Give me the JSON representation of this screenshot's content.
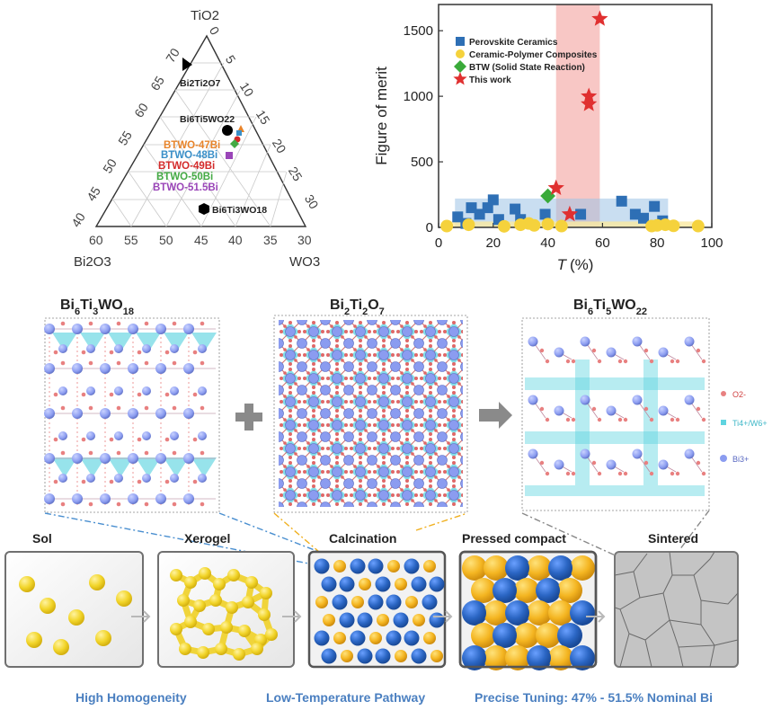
{
  "ternary": {
    "apex_top": "TiO2",
    "apex_left": "Bi2O3",
    "apex_right": "WO3",
    "left_ticks": [
      "40",
      "45",
      "50",
      "55",
      "60",
      "65",
      "70"
    ],
    "right_ticks": [
      "0",
      "5",
      "10",
      "15",
      "20",
      "25",
      "30"
    ],
    "bottom_ticks": [
      "60",
      "55",
      "50",
      "45",
      "40",
      "35",
      "30"
    ],
    "labels": {
      "bi2ti2o7": "Bi2Ti2O7",
      "bi6ti5wo22": "Bi6Ti5WO22",
      "bi6ti3wo18": "Bi6Ti3WO18",
      "btwo47": "BTWO-47Bi",
      "btwo48": "BTWO-48Bi",
      "btwo49": "BTWO-49Bi",
      "btwo50": "BTWO-50Bi",
      "btwo515": "BTWO-51.5Bi"
    },
    "colors": {
      "btwo47": "#e8842a",
      "btwo48": "#3a8fc8",
      "btwo49": "#d42a2a",
      "btwo50": "#44aa44",
      "btwo515": "#9a45b8"
    }
  },
  "chart_data": {
    "type": "scatter",
    "xlabel_main": "T",
    "xlabel_unit": "(%)",
    "ylabel": "Figure of merit",
    "xlim": [
      0,
      100
    ],
    "ylim": [
      0,
      1700
    ],
    "x_ticks": [
      0,
      20,
      40,
      60,
      80,
      100
    ],
    "y_ticks": [
      0,
      500,
      1000,
      1500
    ],
    "legend_position": "top-left",
    "series": [
      {
        "name": "Perovskite Ceramics",
        "marker": "square",
        "color": "#2e6fb5",
        "points": [
          [
            7,
            80
          ],
          [
            10,
            30
          ],
          [
            12,
            150
          ],
          [
            15,
            100
          ],
          [
            18,
            150
          ],
          [
            20,
            210
          ],
          [
            22,
            60
          ],
          [
            28,
            140
          ],
          [
            30,
            60
          ],
          [
            39,
            100
          ],
          [
            52,
            100
          ],
          [
            67,
            200
          ],
          [
            72,
            100
          ],
          [
            75,
            70
          ],
          [
            79,
            160
          ],
          [
            82,
            50
          ]
        ]
      },
      {
        "name": "Ceramic-Polymer Composites",
        "marker": "circle",
        "color": "#f5d23c",
        "points": [
          [
            3,
            10
          ],
          [
            11,
            20
          ],
          [
            24,
            8
          ],
          [
            30,
            20
          ],
          [
            33,
            30
          ],
          [
            35,
            15
          ],
          [
            40,
            25
          ],
          [
            45,
            10
          ],
          [
            78,
            10
          ],
          [
            80,
            15
          ],
          [
            83,
            20
          ],
          [
            86,
            12
          ],
          [
            95,
            10
          ]
        ]
      },
      {
        "name": "BTW (Solid State Reaction)",
        "marker": "diamond",
        "color": "#3aaa3a",
        "points": [
          [
            40,
            240
          ]
        ]
      },
      {
        "name": "This work",
        "marker": "star",
        "color": "#e03030",
        "points": [
          [
            43,
            300
          ],
          [
            48,
            100
          ],
          [
            55,
            1000
          ],
          [
            55,
            940
          ],
          [
            59,
            1590
          ]
        ]
      }
    ],
    "bands": {
      "pink": "#f4a9a6",
      "blue": "#9cc2e6",
      "yellow": "#fae9a0"
    }
  },
  "structures": {
    "left": "Bi6Ti3WO18",
    "middle": "Bi2Ti2O7",
    "right": "Bi6Ti5WO22",
    "legend": {
      "o": "O2-",
      "tiw": "Ti4+/W6+",
      "bi": "Bi3+"
    },
    "colors": {
      "bi": "#8b9cf0",
      "o": "#e88080",
      "poly": "#5fd4e0"
    }
  },
  "process": {
    "stages": [
      "Sol",
      "Xerogel",
      "Calcination",
      "Pressed compact",
      "Sintered"
    ],
    "captions": [
      "High Homogeneity",
      "Low-Temperature Pathway",
      "Precise Tuning: 47% - 51.5% Nominal Bi"
    ],
    "colors": {
      "caption": "#4a7fc0",
      "yellow": "#f5cc2a",
      "blue": "#2b66c4",
      "arrow": "#b0b0b0"
    }
  }
}
